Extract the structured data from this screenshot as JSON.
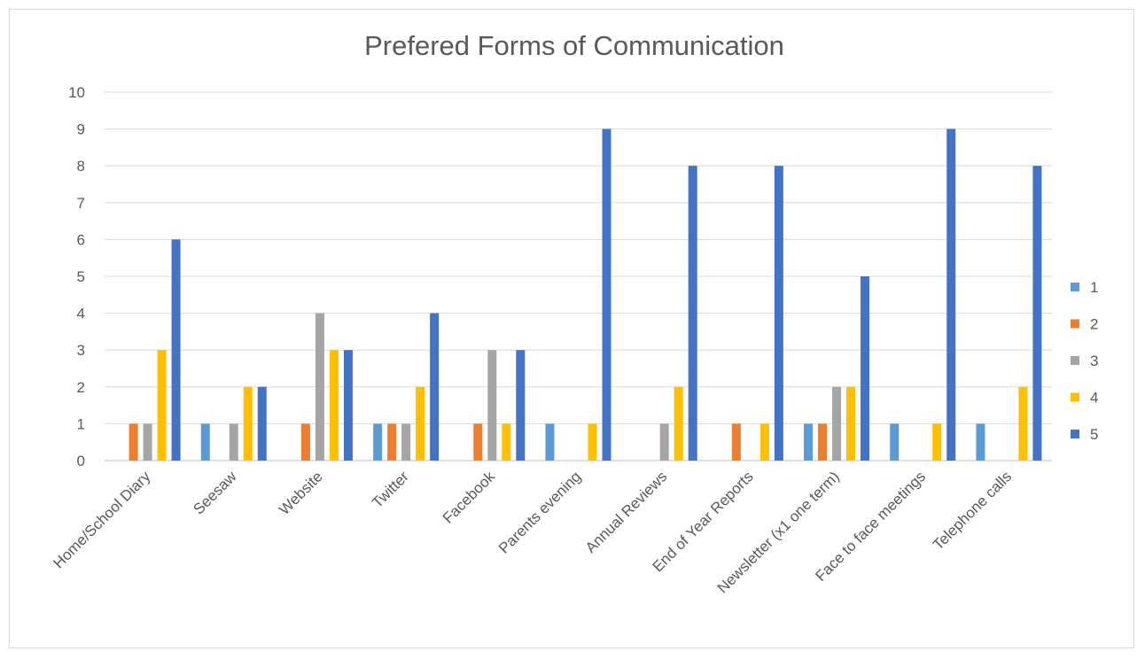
{
  "chart_data": {
    "type": "bar",
    "title": "Prefered Forms of Communication",
    "xlabel": "",
    "ylabel": "",
    "ylim": [
      0,
      10
    ],
    "yticks": [
      0,
      1,
      2,
      3,
      4,
      5,
      6,
      7,
      8,
      9,
      10
    ],
    "grid": true,
    "legend_position": "right",
    "categories": [
      "Home/School Diary",
      "Seesaw",
      "Website",
      "Twitter",
      "Facebook",
      "Parents evening",
      "Annual Reviews",
      "End of Year Reports",
      "Newsletter (x1 one term)",
      "Face to face meetings",
      "Telephone calls"
    ],
    "series": [
      {
        "name": "1",
        "color": "#5b9bd5",
        "values": [
          0,
          1,
          0,
          1,
          0,
          1,
          0,
          0,
          1,
          1,
          1
        ]
      },
      {
        "name": "2",
        "color": "#ed7d31",
        "values": [
          1,
          0,
          1,
          1,
          1,
          0,
          0,
          1,
          1,
          0,
          0
        ]
      },
      {
        "name": "3",
        "color": "#a5a5a5",
        "values": [
          1,
          1,
          4,
          1,
          3,
          0,
          1,
          0,
          2,
          0,
          0
        ]
      },
      {
        "name": "4",
        "color": "#ffc000",
        "values": [
          3,
          2,
          3,
          2,
          1,
          1,
          2,
          1,
          2,
          1,
          2
        ]
      },
      {
        "name": "5",
        "color": "#4472c4",
        "values": [
          6,
          2,
          3,
          4,
          3,
          9,
          8,
          8,
          5,
          9,
          8
        ]
      }
    ]
  }
}
